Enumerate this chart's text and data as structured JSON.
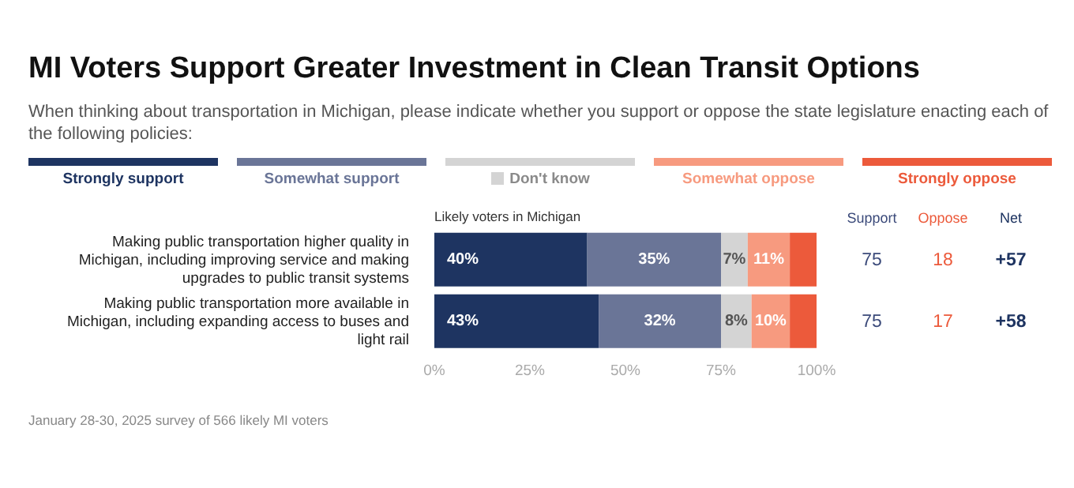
{
  "chart_data": {
    "type": "bar",
    "orientation": "horizontal",
    "stacked": true,
    "title": "MI Voters Support Greater Investment in Clean Transit Options",
    "subtitle": "When thinking about transportation in Michigan, please indicate whether you support or oppose the state legislature enacting each of the following policies:",
    "categories": [
      "Making public transportation higher quality in Michigan, including improving service and making upgrades to public transit systems",
      "Making public transportation more available in Michigan, including expanding access to buses and light rail"
    ],
    "series": [
      {
        "name": "Strongly support",
        "color": "#1e3461",
        "values": [
          40,
          43
        ],
        "value_labels": [
          "40%",
          "43%"
        ]
      },
      {
        "name": "Somewhat support",
        "color": "#6a7597",
        "values": [
          35,
          32
        ],
        "value_labels": [
          "35%",
          "32%"
        ]
      },
      {
        "name": "Don't know",
        "color": "#d4d4d4",
        "values": [
          7,
          8
        ],
        "value_labels": [
          "7%",
          "8%"
        ]
      },
      {
        "name": "Somewhat oppose",
        "color": "#f79a7f",
        "values": [
          11,
          10
        ],
        "value_labels": [
          "11%",
          "10%"
        ]
      },
      {
        "name": "Strongly oppose",
        "color": "#ec5a3b",
        "values": [
          7,
          7
        ],
        "value_labels": [
          null,
          null
        ]
      }
    ],
    "xlim": [
      0,
      100
    ],
    "xticks": [
      {
        "value": 0,
        "label": "0%"
      },
      {
        "value": 25,
        "label": "25%"
      },
      {
        "value": 50,
        "label": "50%"
      },
      {
        "value": 75,
        "label": "75%"
      },
      {
        "value": 100,
        "label": "100%"
      }
    ],
    "legend": "top",
    "grid": false,
    "annotations": [
      "Likely voters in Michigan",
      "Support",
      "Oppose",
      "Net",
      "75",
      "18",
      "+57",
      "75",
      "17",
      "+58",
      "January 28-30, 2025 survey of 566 likely MI voters"
    ]
  }
}
